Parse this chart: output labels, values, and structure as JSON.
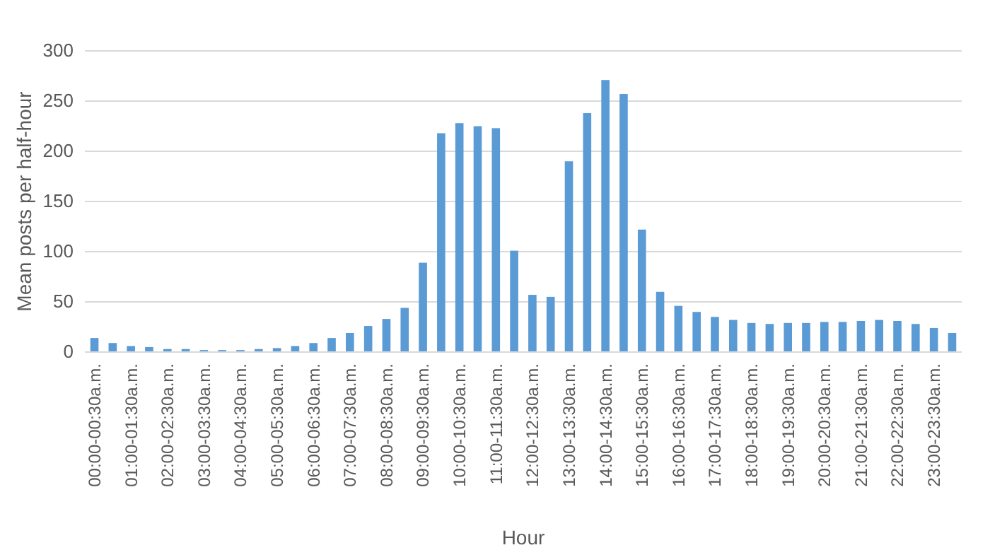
{
  "chart_data": {
    "type": "bar",
    "xlabel": "Hour",
    "ylabel": "Mean posts per half-hour",
    "categories": [
      "00:00-00:30a.m.",
      null,
      "01:00-01:30a.m.",
      null,
      "02:00-02:30a.m.",
      null,
      "03:00-03:30a.m.",
      null,
      "04:00-04:30a.m.",
      null,
      "05:00-05:30a.m.",
      null,
      "06:00-06:30a.m.",
      null,
      "07:00-07:30a.m.",
      null,
      "08:00-08:30a.m.",
      null,
      "09:00-09:30a.m.",
      null,
      "10:00-10:30a.m.",
      null,
      "11:00-11:30a.m.",
      null,
      "12:00-12:30a.m.",
      null,
      "13:00-13:30a.m.",
      null,
      "14:00-14:30a.m.",
      null,
      "15:00-15:30a.m.",
      null,
      "16:00-16:30a.m.",
      null,
      "17:00-17:30a.m.",
      null,
      "18:00-18:30a.m.",
      null,
      "19:00-19:30a.m.",
      null,
      "20:00-20:30a.m.",
      null,
      "21:00-21:30a.m.",
      null,
      "22:00-22:30a.m.",
      null,
      "23:00-23:30a.m.",
      null
    ],
    "values": [
      14,
      9,
      6,
      5,
      3,
      3,
      2,
      2,
      2,
      3,
      4,
      6,
      9,
      14,
      19,
      26,
      33,
      44,
      89,
      218,
      228,
      225,
      223,
      101,
      57,
      55,
      190,
      238,
      271,
      257,
      122,
      60,
      46,
      40,
      35,
      32,
      29,
      28,
      29,
      29,
      30,
      30,
      31,
      32,
      31,
      28,
      24,
      19
    ],
    "color": "#5b9bd5",
    "ylim": [
      0,
      300
    ],
    "yticks": [
      0,
      50,
      100,
      150,
      200,
      250,
      300
    ],
    "grid": "y"
  }
}
